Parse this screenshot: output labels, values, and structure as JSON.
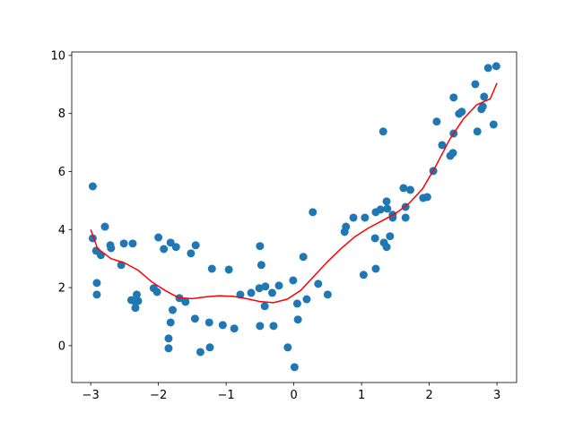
{
  "chart_data": {
    "type": "scatter",
    "xlim": [
      -3.28,
      3.29
    ],
    "ylim": [
      -1.27,
      10.12
    ],
    "xticks": [
      {
        "value": -3,
        "label": "−3"
      },
      {
        "value": -2,
        "label": "−2"
      },
      {
        "value": -1,
        "label": "−1"
      },
      0,
      1,
      2,
      3
    ],
    "yticks": [
      0,
      2,
      4,
      6,
      8,
      10
    ],
    "series": [
      {
        "mode": "markers",
        "color": "#1f77b4",
        "x": [
          -2.97,
          -2.97,
          -2.92,
          -2.91,
          -2.91,
          -2.85,
          -2.79,
          -2.71,
          -2.7,
          -2.55,
          -2.51,
          -2.38,
          -2.4,
          -2.32,
          -2.34,
          -2.34,
          -2.3,
          -2.07,
          -2.02,
          -2.0,
          -1.92,
          -1.82,
          -1.74,
          -1.85,
          -1.85,
          -1.82,
          -1.79,
          -1.69,
          -1.6,
          -1.52,
          -1.45,
          -1.46,
          -1.38,
          -1.25,
          -1.24,
          -1.21,
          -1.05,
          -0.96,
          -0.88,
          -0.79,
          -0.63,
          -0.51,
          -0.5,
          -0.48,
          -0.5,
          -0.43,
          -0.42,
          -0.32,
          -0.3,
          -0.22,
          -0.09,
          -0.01,
          0.01,
          0.05,
          0.06,
          0.14,
          0.19,
          0.28,
          0.36,
          0.5,
          0.75,
          0.77,
          0.88,
          1.03,
          1.05,
          1.2,
          1.21,
          1.21,
          1.28,
          1.32,
          1.33,
          1.37,
          1.37,
          1.38,
          1.42,
          1.46,
          1.46,
          1.62,
          1.65,
          1.65,
          1.72,
          1.91,
          1.97,
          2.06,
          2.11,
          2.19,
          2.31,
          2.35,
          2.36,
          2.36,
          2.44,
          2.48,
          2.68,
          2.71,
          2.77,
          2.79,
          2.81,
          2.87,
          2.95,
          2.99
        ],
        "values": [
          5.49,
          3.7,
          3.27,
          2.16,
          1.76,
          3.12,
          4.1,
          3.46,
          3.36,
          2.78,
          3.52,
          3.52,
          1.57,
          1.76,
          1.51,
          1.3,
          1.54,
          1.98,
          1.85,
          3.73,
          3.33,
          3.55,
          3.4,
          0.25,
          -0.09,
          0.8,
          1.23,
          1.64,
          1.51,
          3.18,
          3.46,
          0.93,
          -0.22,
          0.8,
          -0.06,
          2.65,
          0.71,
          2.62,
          0.59,
          1.76,
          1.82,
          1.98,
          3.43,
          2.78,
          0.68,
          1.36,
          2.04,
          1.82,
          0.68,
          2.07,
          -0.06,
          2.25,
          -0.74,
          1.45,
          0.9,
          3.06,
          1.6,
          4.6,
          2.13,
          1.76,
          3.92,
          4.1,
          4.41,
          2.44,
          4.41,
          3.7,
          2.65,
          4.6,
          4.69,
          7.38,
          3.55,
          3.4,
          4.97,
          4.72,
          3.77,
          4.51,
          4.41,
          5.43,
          4.78,
          4.41,
          5.37,
          5.09,
          5.12,
          6.02,
          7.72,
          6.91,
          6.54,
          6.64,
          7.31,
          8.55,
          7.99,
          8.06,
          9.01,
          7.38,
          8.15,
          8.24,
          8.58,
          9.57,
          7.62,
          9.63
        ]
      },
      {
        "mode": "line",
        "color": "#ff0000",
        "x": [
          -3.0,
          -2.9,
          -2.7,
          -2.5,
          -2.3,
          -2.1,
          -1.9,
          -1.7,
          -1.5,
          -1.3,
          -1.1,
          -0.9,
          -0.7,
          -0.5,
          -0.3,
          -0.1,
          0.1,
          0.3,
          0.5,
          0.7,
          0.9,
          1.1,
          1.3,
          1.5,
          1.7,
          1.9,
          2.1,
          2.3,
          2.5,
          2.7,
          2.9,
          3.0
        ],
        "values": [
          4.0,
          3.35,
          3.0,
          2.85,
          2.6,
          2.2,
          1.9,
          1.65,
          1.62,
          1.68,
          1.72,
          1.7,
          1.62,
          1.52,
          1.48,
          1.6,
          1.9,
          2.4,
          2.9,
          3.35,
          3.75,
          4.05,
          4.3,
          4.55,
          4.9,
          5.4,
          6.2,
          7.1,
          7.8,
          8.3,
          8.5,
          9.05
        ]
      }
    ]
  }
}
